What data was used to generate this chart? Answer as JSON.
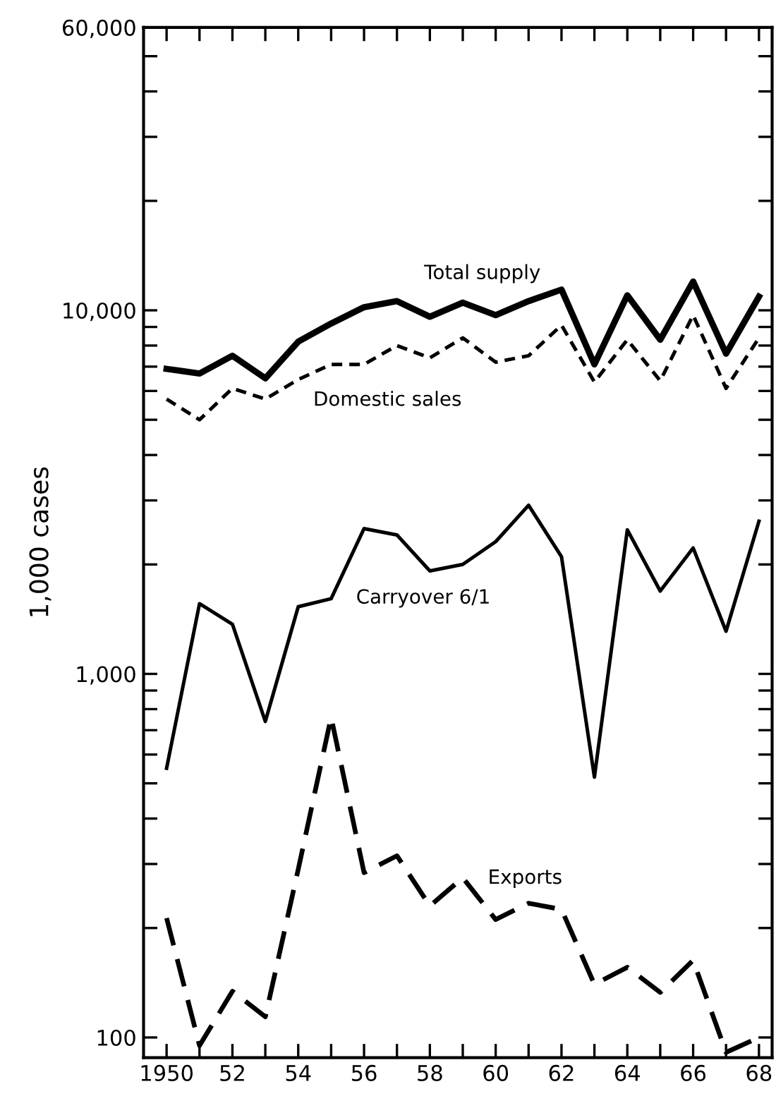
{
  "chart_data": {
    "type": "line",
    "ylabel": "1,000 cases",
    "log": "y",
    "grid": false,
    "legend": false,
    "marker": "none",
    "x": [
      1950,
      1951,
      1952,
      1953,
      1954,
      1955,
      1956,
      1957,
      1958,
      1959,
      1960,
      1961,
      1962,
      1963,
      1964,
      1965,
      1966,
      1967,
      1968
    ],
    "series": [
      {
        "name": "Total supply",
        "color": "#000000",
        "line_style": "solid",
        "values": [
          6900,
          6700,
          7500,
          6500,
          8200,
          9200,
          10200,
          10600,
          9600,
          10500,
          9700,
          10600,
          11400,
          7100,
          11000,
          8300,
          12000,
          7600,
          10900
        ]
      },
      {
        "name": "Domestic sales",
        "color": "#000000",
        "line_style": "dashed",
        "values": [
          5700,
          5000,
          6100,
          5700,
          6450,
          7100,
          7100,
          8000,
          7400,
          8400,
          7200,
          7500,
          9100,
          6350,
          8300,
          6400,
          9700,
          6100,
          8400
        ]
      },
      {
        "name": "Carryover 6/1",
        "color": "#000000",
        "line_style": "solid",
        "values": [
          550,
          1560,
          1370,
          740,
          1530,
          1610,
          2510,
          2410,
          1920,
          2000,
          2310,
          2910,
          2100,
          520,
          2490,
          1690,
          2220,
          1310,
          2630
        ]
      },
      {
        "name": "Exports",
        "color": "#000000",
        "line_style": "dashed",
        "values": [
          213,
          95,
          134,
          114,
          290,
          760,
          284,
          316,
          230,
          275,
          211,
          234,
          225,
          140,
          156,
          133,
          163,
          91,
          100
        ]
      }
    ],
    "xlim": [
      1949.3,
      1968.4
    ],
    "xticks": [
      1950,
      {
        "value": 1951,
        "label": null
      },
      {
        "value": 1952,
        "label": "52"
      },
      {
        "value": 1953,
        "label": null
      },
      {
        "value": 1954,
        "label": "54"
      },
      {
        "value": 1955,
        "label": null
      },
      {
        "value": 1956,
        "label": "56"
      },
      {
        "value": 1957,
        "label": null
      },
      {
        "value": 1958,
        "label": "58"
      },
      {
        "value": 1959,
        "label": null
      },
      {
        "value": 1960,
        "label": "60"
      },
      {
        "value": 1961,
        "label": null
      },
      {
        "value": 1962,
        "label": "62"
      },
      {
        "value": 1963,
        "label": null
      },
      {
        "value": 1964,
        "label": "64"
      },
      {
        "value": 1965,
        "label": null
      },
      {
        "value": 1966,
        "label": "66"
      },
      {
        "value": 1967,
        "label": null
      },
      {
        "value": 1968,
        "label": "68"
      }
    ],
    "ylim": [
      88,
      60000
    ],
    "yticks": [
      {
        "value": 100,
        "label": "100"
      },
      {
        "value": 200,
        "label": null
      },
      {
        "value": 300,
        "label": null
      },
      {
        "value": 400,
        "label": null
      },
      {
        "value": 500,
        "label": null
      },
      {
        "value": 600,
        "label": null
      },
      {
        "value": 700,
        "label": null
      },
      {
        "value": 800,
        "label": null
      },
      {
        "value": 900,
        "label": null
      },
      {
        "value": 1000,
        "label": "1,000"
      },
      {
        "value": 2000,
        "label": null
      },
      {
        "value": 3000,
        "label": null
      },
      {
        "value": 4000,
        "label": null
      },
      {
        "value": 5000,
        "label": null
      },
      {
        "value": 6000,
        "label": null
      },
      {
        "value": 7000,
        "label": null
      },
      {
        "value": 8000,
        "label": null
      },
      {
        "value": 9000,
        "label": null
      },
      {
        "value": 10000,
        "label": "10,000"
      },
      {
        "value": 20000,
        "label": null
      },
      {
        "value": 30000,
        "label": null
      },
      {
        "value": 40000,
        "label": null
      },
      {
        "value": 50000,
        "label": null
      },
      {
        "value": 60000,
        "label": "60,000"
      }
    ]
  }
}
